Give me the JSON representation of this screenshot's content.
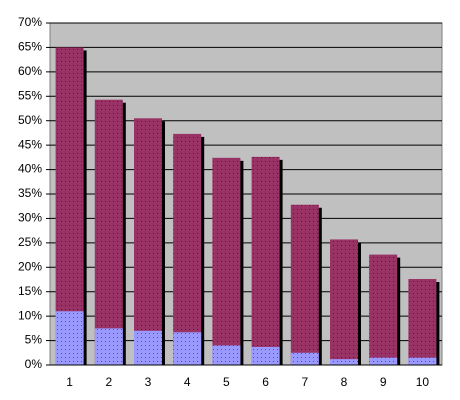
{
  "chart_data": {
    "type": "bar",
    "categories": [
      "1",
      "2",
      "3",
      "4",
      "5",
      "6",
      "7",
      "8",
      "9",
      "10"
    ],
    "series": [
      {
        "color": "#993366",
        "values": [
          65,
          54.3,
          50.5,
          47.3,
          42.4,
          42.6,
          32.8,
          25.7,
          22.6,
          17.6
        ]
      },
      {
        "color": "#9999ff",
        "values": [
          11,
          7.5,
          7,
          6.7,
          4,
          3.7,
          2.5,
          1.2,
          1.5,
          1.5
        ]
      }
    ],
    "ylim": [
      0,
      70
    ],
    "yticks": [
      {
        "value": 0,
        "label": "0%"
      },
      {
        "value": 5,
        "label": "5%"
      },
      {
        "value": 10,
        "label": "10%"
      },
      {
        "value": 15,
        "label": "15%"
      },
      {
        "value": 20,
        "label": "20%"
      },
      {
        "value": 25,
        "label": "25%"
      },
      {
        "value": 30,
        "label": "30%"
      },
      {
        "value": 35,
        "label": "35%"
      },
      {
        "value": 40,
        "label": "40%"
      },
      {
        "value": 45,
        "label": "45%"
      },
      {
        "value": 50,
        "label": "50%"
      },
      {
        "value": 55,
        "label": "55%"
      },
      {
        "value": 60,
        "label": "60%"
      },
      {
        "value": 65,
        "label": "65%"
      },
      {
        "value": 70,
        "label": "70%"
      }
    ],
    "grid": true,
    "background": "#c0c0c0"
  }
}
